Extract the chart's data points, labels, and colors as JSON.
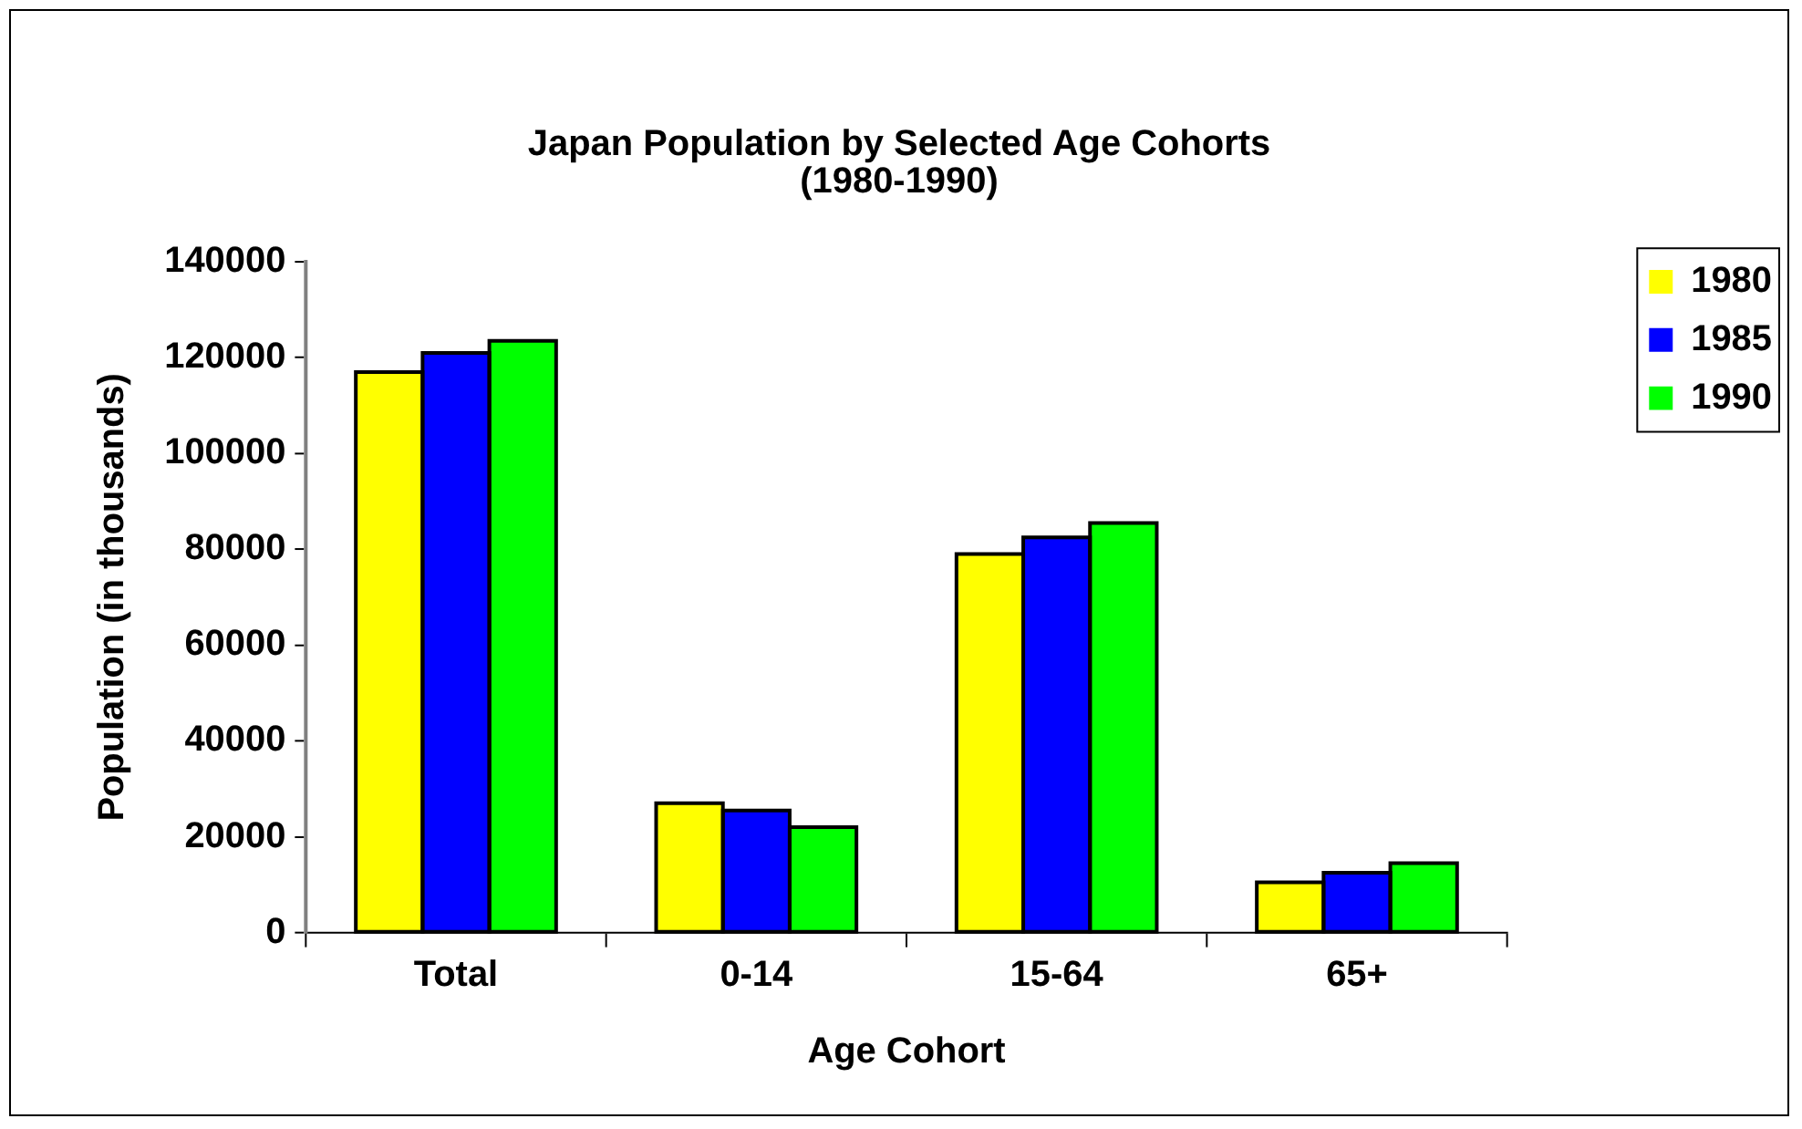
{
  "chart_data": {
    "type": "bar",
    "title": "Japan Population by Selected Age Cohorts",
    "subtitle": "(1980-1990)",
    "xlabel": "Age Cohort",
    "ylabel": "Population (in thousands)",
    "categories": [
      "Total",
      "0-14",
      "15-64",
      "65+"
    ],
    "series": [
      {
        "name": "1980",
        "color": "#ffff00",
        "values": [
          117000,
          27000,
          79000,
          10500
        ]
      },
      {
        "name": "1985",
        "color": "#0000ff",
        "values": [
          121000,
          25500,
          82500,
          12500
        ]
      },
      {
        "name": "1990",
        "color": "#00ff00",
        "values": [
          123500,
          22000,
          85500,
          14500
        ]
      }
    ],
    "ylim": [
      0,
      140000
    ],
    "yticks": [
      0,
      20000,
      40000,
      60000,
      80000,
      100000,
      120000,
      140000
    ],
    "grid": false,
    "legend": "top right"
  }
}
